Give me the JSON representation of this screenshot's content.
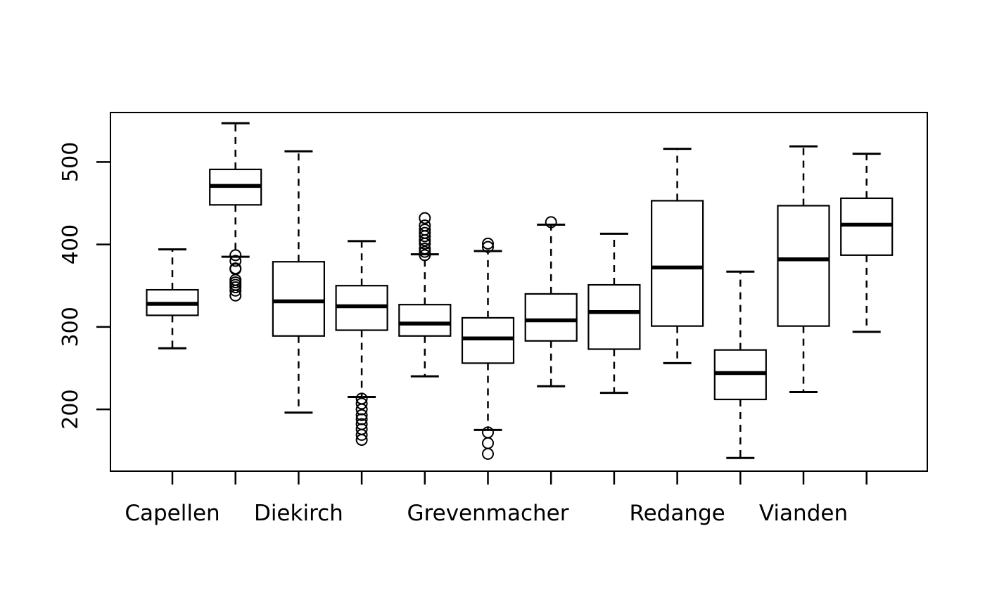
{
  "figure": {
    "background_color": "#ffffff",
    "stroke_color": "#000000"
  },
  "chart_data": {
    "type": "boxplot",
    "orientation": "vertical",
    "title": "",
    "xlabel": "",
    "ylabel": "",
    "grid": false,
    "y_axis": {
      "tick_labels": [
        "200",
        "300",
        "400",
        "500"
      ],
      "tick_values": [
        200,
        300,
        400,
        500
      ],
      "range": [
        125,
        560
      ]
    },
    "x_axis": {
      "n_positions": 12,
      "visible_labels": [
        {
          "text": "Capellen",
          "position": 1
        },
        {
          "text": "Diekirch",
          "position": 3
        },
        {
          "text": "Grevenmacher",
          "position": 6
        },
        {
          "text": "Redange",
          "position": 9
        },
        {
          "text": "Vianden",
          "position": 11
        }
      ]
    },
    "boxes": [
      {
        "position": 1,
        "label": "Capellen",
        "whisker_low": 274,
        "q1": 314,
        "median": 328,
        "q3": 345,
        "whisker_high": 394,
        "outliers": []
      },
      {
        "position": 2,
        "label": "",
        "whisker_low": 385,
        "q1": 448,
        "median": 471,
        "q3": 491,
        "whisker_high": 547,
        "outliers": [
          387,
          380,
          371,
          370,
          357,
          354,
          351,
          348,
          344,
          338
        ]
      },
      {
        "position": 3,
        "label": "Diekirch",
        "whisker_low": 196,
        "q1": 289,
        "median": 331,
        "q3": 379,
        "whisker_high": 513,
        "outliers": []
      },
      {
        "position": 4,
        "label": "",
        "whisker_low": 215,
        "q1": 296,
        "median": 325,
        "q3": 350,
        "whisker_high": 404,
        "outliers": [
          213,
          207,
          200,
          193,
          188,
          182,
          176,
          169,
          163
        ]
      },
      {
        "position": 5,
        "label": "",
        "whisker_low": 240,
        "q1": 289,
        "median": 304,
        "q3": 327,
        "whisker_high": 388,
        "outliers": [
          432,
          423,
          418,
          414,
          410,
          405,
          401,
          395,
          391,
          387
        ]
      },
      {
        "position": 6,
        "label": "Grevenmacher",
        "whisker_low": 175,
        "q1": 256,
        "median": 286,
        "q3": 311,
        "whisker_high": 392,
        "outliers": [
          401,
          397,
          172,
          159,
          146
        ]
      },
      {
        "position": 7,
        "label": "",
        "whisker_low": 228,
        "q1": 283,
        "median": 308,
        "q3": 340,
        "whisker_high": 424,
        "outliers": [
          427
        ]
      },
      {
        "position": 8,
        "label": "",
        "whisker_low": 220,
        "q1": 273,
        "median": 318,
        "q3": 351,
        "whisker_high": 413,
        "outliers": []
      },
      {
        "position": 9,
        "label": "Redange",
        "whisker_low": 256,
        "q1": 301,
        "median": 372,
        "q3": 453,
        "whisker_high": 516,
        "outliers": []
      },
      {
        "position": 10,
        "label": "",
        "whisker_low": 141,
        "q1": 212,
        "median": 244,
        "q3": 272,
        "whisker_high": 367,
        "outliers": []
      },
      {
        "position": 11,
        "label": "Vianden",
        "whisker_low": 221,
        "q1": 301,
        "median": 382,
        "q3": 447,
        "whisker_high": 519,
        "outliers": []
      },
      {
        "position": 12,
        "label": "",
        "whisker_low": 294,
        "q1": 387,
        "median": 424,
        "q3": 456,
        "whisker_high": 510,
        "outliers": []
      }
    ]
  }
}
